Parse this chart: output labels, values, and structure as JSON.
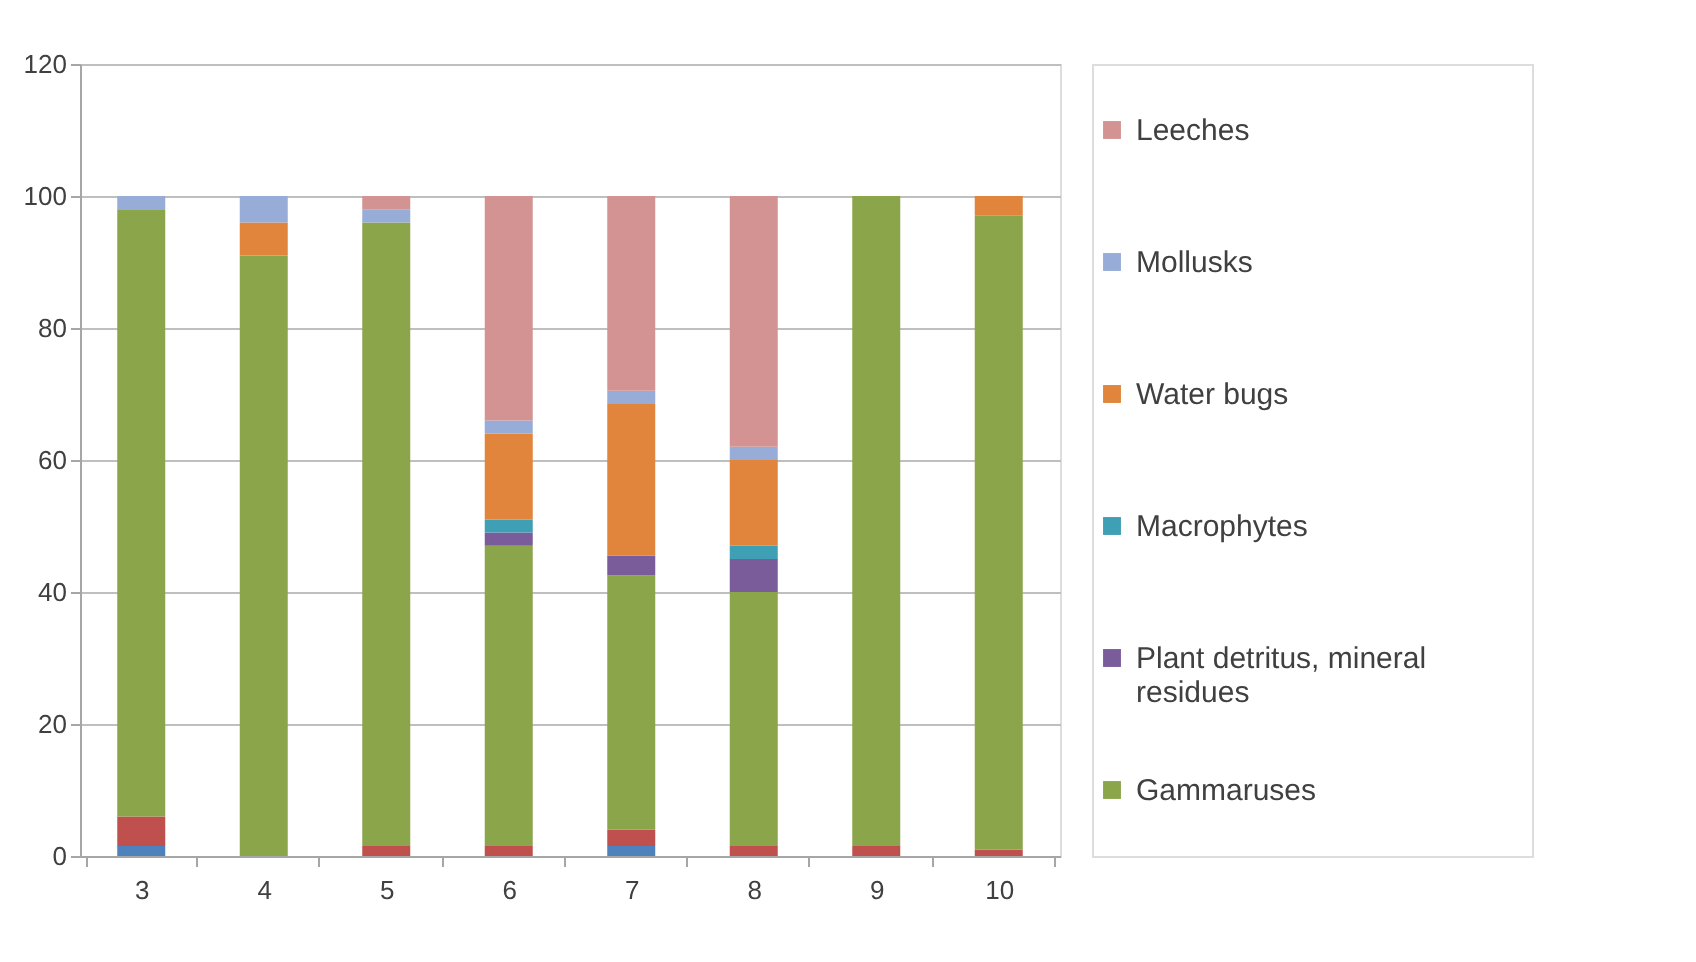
{
  "chart_data": {
    "type": "bar",
    "stacked": true,
    "categories": [
      "3",
      "4",
      "5",
      "6",
      "7",
      "8",
      "9",
      "10"
    ],
    "series": [
      {
        "color": "#4f81bd",
        "values": [
          1.5,
          null,
          null,
          null,
          1.5,
          null,
          null,
          null
        ]
      },
      {
        "color": "#c0504d",
        "values": [
          4.5,
          null,
          1.5,
          1.5,
          2.5,
          1.5,
          1.5,
          1
        ]
      },
      {
        "name": "Gammaruses",
        "color": "#8ba54b",
        "values": [
          92,
          91,
          94.5,
          45.5,
          38.5,
          38.5,
          98.5,
          96
        ]
      },
      {
        "name": "Plant detritus, mineral residues",
        "color": "#7b5c9a",
        "values": [
          null,
          null,
          null,
          2,
          3,
          5,
          null,
          null
        ]
      },
      {
        "name": "Macrophytes",
        "color": "#3e9fb5",
        "values": [
          null,
          null,
          null,
          2,
          null,
          2,
          null,
          null
        ]
      },
      {
        "name": "Water bugs",
        "color": "#e0853b",
        "values": [
          null,
          5,
          null,
          13,
          23,
          13,
          null,
          3
        ]
      },
      {
        "name": "Mollusks",
        "color": "#97acd6",
        "values": [
          2,
          4,
          2,
          2,
          2,
          2,
          null,
          null
        ]
      },
      {
        "name": "Leeches",
        "color": "#d49393",
        "values": [
          null,
          null,
          2,
          34,
          29.5,
          38,
          null,
          null
        ]
      }
    ],
    "ylim": [
      0,
      120
    ],
    "yticks": [
      0,
      20,
      40,
      60,
      80,
      100,
      120
    ],
    "grid": "y",
    "legend": "right"
  }
}
